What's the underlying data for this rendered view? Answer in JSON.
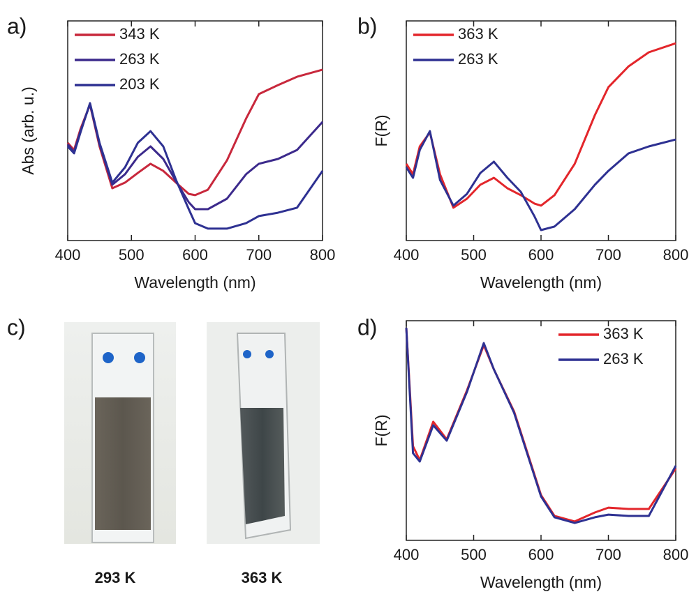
{
  "chart_data": [
    {
      "type": "line",
      "panel": "a)",
      "xlabel": "Wavelength (nm)",
      "ylabel": "Abs (arb. u.)",
      "x": [
        400,
        410,
        420,
        435,
        450,
        470,
        490,
        510,
        530,
        550,
        570,
        590,
        600,
        620,
        650,
        680,
        700,
        730,
        760,
        800
      ],
      "xlim": [
        400,
        800
      ],
      "xticks": [
        400,
        500,
        600,
        700,
        800
      ],
      "ylim": [
        0,
        1.05
      ],
      "legend": "upper left",
      "series": [
        {
          "name": "343 K",
          "color": "#c8283c",
          "values": [
            0.467,
            0.433,
            0.533,
            0.65,
            0.45,
            0.25,
            0.277,
            0.323,
            0.367,
            0.333,
            0.277,
            0.223,
            0.217,
            0.243,
            0.383,
            0.583,
            0.7,
            0.743,
            0.783,
            0.817
          ]
        },
        {
          "name": "263 K",
          "color": "#3c2a8c",
          "values": [
            0.46,
            0.423,
            0.523,
            0.653,
            0.46,
            0.267,
            0.317,
            0.4,
            0.45,
            0.39,
            0.283,
            0.183,
            0.15,
            0.15,
            0.2,
            0.317,
            0.367,
            0.39,
            0.433,
            0.567
          ]
        },
        {
          "name": "203 K",
          "color": "#2e3192",
          "values": [
            0.45,
            0.417,
            0.517,
            0.657,
            0.467,
            0.277,
            0.35,
            0.467,
            0.523,
            0.45,
            0.29,
            0.15,
            0.083,
            0.057,
            0.057,
            0.083,
            0.117,
            0.133,
            0.157,
            0.333
          ]
        }
      ]
    },
    {
      "type": "line",
      "panel": "b)",
      "xlabel": "Wavelength (nm)",
      "ylabel": "F(R)",
      "x": [
        400,
        410,
        420,
        435,
        450,
        470,
        490,
        510,
        530,
        550,
        570,
        590,
        600,
        620,
        650,
        680,
        700,
        730,
        760,
        800
      ],
      "xlim": [
        400,
        800
      ],
      "xticks": [
        400,
        500,
        600,
        700,
        800
      ],
      "ylim": [
        0,
        1.05
      ],
      "legend": "upper left",
      "series": [
        {
          "name": "363 K",
          "color": "#e3262b",
          "values": [
            0.367,
            0.317,
            0.45,
            0.517,
            0.317,
            0.157,
            0.2,
            0.267,
            0.3,
            0.25,
            0.217,
            0.177,
            0.167,
            0.217,
            0.367,
            0.6,
            0.733,
            0.833,
            0.9,
            0.943
          ]
        },
        {
          "name": "263 K",
          "color": "#2e3192",
          "values": [
            0.35,
            0.3,
            0.433,
            0.523,
            0.29,
            0.167,
            0.223,
            0.323,
            0.377,
            0.3,
            0.233,
            0.117,
            0.05,
            0.067,
            0.15,
            0.267,
            0.333,
            0.417,
            0.45,
            0.483
          ]
        }
      ]
    },
    {
      "type": "line",
      "panel": "d)",
      "xlabel": "Wavelength (nm)",
      "ylabel": "F(R)",
      "x": [
        400,
        410,
        420,
        440,
        460,
        490,
        515,
        530,
        560,
        580,
        600,
        620,
        650,
        680,
        700,
        730,
        760,
        800
      ],
      "xlim": [
        400,
        800
      ],
      "xticks": [
        400,
        500,
        600,
        700,
        800
      ],
      "ylim": [
        0,
        1
      ],
      "legend": "upper right",
      "series": [
        {
          "name": "363 K",
          "color": "#e3262b",
          "values": [
            0.968,
            0.429,
            0.365,
            0.54,
            0.46,
            0.683,
            0.889,
            0.778,
            0.587,
            0.397,
            0.206,
            0.111,
            0.086,
            0.127,
            0.149,
            0.143,
            0.143,
            0.327
          ]
        },
        {
          "name": "263 K",
          "color": "#2e3192",
          "values": [
            0.968,
            0.397,
            0.359,
            0.524,
            0.454,
            0.676,
            0.898,
            0.778,
            0.581,
            0.39,
            0.2,
            0.105,
            0.079,
            0.105,
            0.117,
            0.111,
            0.111,
            0.34
          ]
        }
      ]
    }
  ],
  "photo_panel": {
    "panel": "c)",
    "captions": [
      "293 K",
      "363 K"
    ]
  }
}
